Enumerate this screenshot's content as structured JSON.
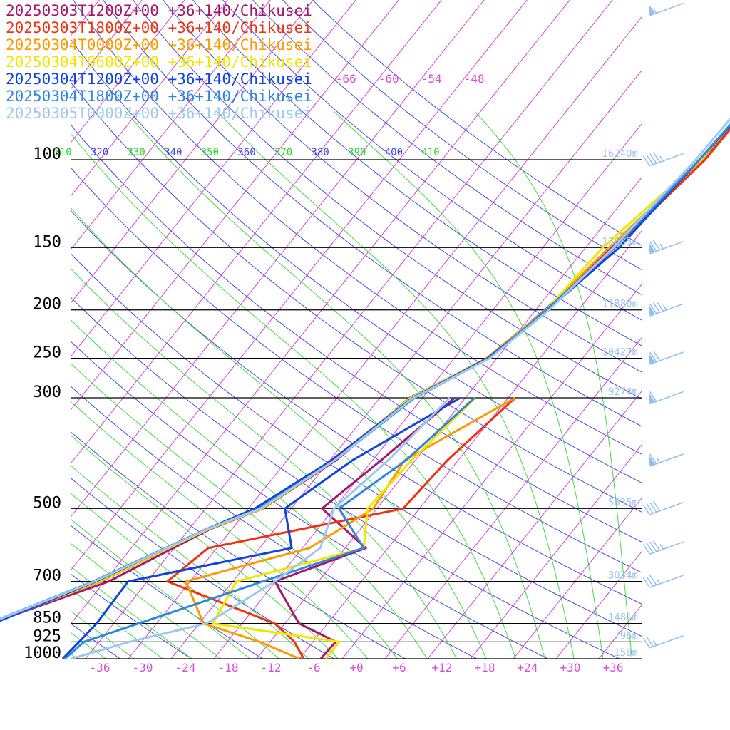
{
  "chart_data": {
    "type": "line",
    "title": "",
    "xlabel": "",
    "ylabel": "",
    "x_unit": "degC",
    "xlim": [
      -40,
      40
    ],
    "pressure_levels": [
      100,
      150,
      200,
      250,
      300,
      500,
      700,
      850,
      925,
      1000
    ],
    "pressure_labels": [
      "100",
      "150",
      "200",
      "250",
      "300",
      "500",
      "700",
      "850",
      "925",
      "1000"
    ],
    "x_tick_labels": [
      "-36",
      "-30",
      "-24",
      "-18",
      "-12",
      "-6",
      "+0",
      "+6",
      "+12",
      "+18",
      "+24",
      "+30",
      "+36"
    ],
    "x_tick_values": [
      -36,
      -30,
      -24,
      -18,
      -12,
      -6,
      0,
      6,
      12,
      18,
      24,
      30,
      36
    ],
    "isotherm_labels": [
      "-66",
      "-60",
      "-54",
      "-48"
    ],
    "theta_labels": [
      {
        "text": "310",
        "color": "#22dd22"
      },
      {
        "text": "320",
        "color": "#4444dd"
      },
      {
        "text": "330",
        "color": "#22dd22"
      },
      {
        "text": "340",
        "color": "#4444dd"
      },
      {
        "text": "350",
        "color": "#22dd22"
      },
      {
        "text": "360",
        "color": "#4444dd"
      },
      {
        "text": "370",
        "color": "#22dd22"
      },
      {
        "text": "380",
        "color": "#4444dd"
      },
      {
        "text": "390",
        "color": "#22dd22"
      },
      {
        "text": "400",
        "color": "#4444dd"
      },
      {
        "text": "410",
        "color": "#22dd22"
      }
    ],
    "height_labels": [
      "16240m",
      "13685m",
      "11880m",
      "10427m",
      "9274m",
      "5635m",
      "3034m",
      "1481m",
      "796m",
      "158m"
    ],
    "series": [
      {
        "name": "20250303T1200Z+00 +36+140/Chikusei",
        "color": "#a8166b",
        "temperature": [
          [
            28,
            -4.8
          ],
          [
            40,
            -5.3
          ],
          [
            70,
            -6.6
          ],
          [
            100,
            -7.6
          ],
          [
            150,
            -10.3
          ],
          [
            200,
            -12.7
          ],
          [
            250,
            -15.3
          ],
          [
            300,
            -21.8
          ],
          [
            400,
            -25.1
          ],
          [
            500,
            -30.0
          ],
          [
            550,
            -35.1
          ],
          [
            700,
            -43.4
          ],
          [
            850,
            -55.4
          ],
          [
            925,
            -62.9
          ],
          [
            1000,
            -64.6
          ]
        ],
        "dewpoint": [
          [
            300,
            -15.5
          ],
          [
            400,
            -18.8
          ],
          [
            500,
            -21.7
          ],
          [
            600,
            -11.1
          ],
          [
            700,
            -20.1
          ],
          [
            850,
            -12.0
          ],
          [
            925,
            -4.8
          ],
          [
            1000,
            -5.0
          ]
        ]
      },
      {
        "name": "20250303T1800Z+00 +36+140/Chikusei",
        "color": "#ee3311",
        "temperature": [
          [
            28,
            -5.7
          ],
          [
            40,
            -5.4
          ],
          [
            70,
            -6.8
          ],
          [
            100,
            -7.1
          ],
          [
            150,
            -9.9
          ],
          [
            200,
            -12.2
          ],
          [
            250,
            -15.3
          ],
          [
            300,
            -21.3
          ],
          [
            400,
            -25.8
          ],
          [
            500,
            -30.0
          ],
          [
            550,
            -35.6
          ],
          [
            700,
            -44.5
          ],
          [
            850,
            -55.5
          ],
          [
            925,
            -62.8
          ],
          [
            1000,
            -65.6
          ]
        ],
        "dewpoint": [
          [
            300,
            -7.0
          ],
          [
            400,
            -9.5
          ],
          [
            500,
            -10.3
          ],
          [
            600,
            -33.2
          ],
          [
            700,
            -35.2
          ],
          [
            850,
            -15.4
          ],
          [
            925,
            -10.6
          ],
          [
            1000,
            -7.4
          ]
        ]
      },
      {
        "name": "20250304T0000Z+00 +36+140/Chikusei",
        "color": "#ff9900",
        "temperature": [
          [
            28,
            -5.6
          ],
          [
            40,
            -6.1
          ],
          [
            70,
            -7.2
          ],
          [
            100,
            -7.6
          ],
          [
            150,
            -10.7
          ],
          [
            200,
            -12.6
          ],
          [
            250,
            -15.5
          ],
          [
            300,
            -21.6
          ],
          [
            400,
            -25.7
          ],
          [
            500,
            -30.8
          ],
          [
            550,
            -35.4
          ],
          [
            700,
            -44.5
          ],
          [
            850,
            -55.3
          ],
          [
            925,
            -62.4
          ],
          [
            1000,
            -64.3
          ]
        ],
        "dewpoint": [
          [
            300,
            -7.0
          ],
          [
            400,
            -15.5
          ],
          [
            500,
            -14.5
          ],
          [
            600,
            -19.0
          ],
          [
            700,
            -32.6
          ],
          [
            850,
            -25.4
          ],
          [
            925,
            -15.5
          ],
          [
            1000,
            -8.0
          ]
        ]
      },
      {
        "name": "20250304T0600Z+00 +36+140/Chikusei",
        "color": "#f2e600",
        "temperature": [
          [
            28,
            -5.6
          ],
          [
            40,
            -6.0
          ],
          [
            70,
            -6.9
          ],
          [
            100,
            -7.7
          ],
          [
            150,
            -11.6
          ],
          [
            200,
            -12.5
          ],
          [
            250,
            -15.3
          ],
          [
            300,
            -21.7
          ],
          [
            400,
            -25.3
          ],
          [
            500,
            -30.1
          ],
          [
            550,
            -35.3
          ],
          [
            700,
            -44.8
          ],
          [
            850,
            -55.2
          ],
          [
            925,
            -62.6
          ],
          [
            1000,
            -64.6
          ]
        ],
        "dewpoint": [
          [
            300,
            -12.6
          ],
          [
            400,
            -14.5
          ],
          [
            500,
            -15.3
          ],
          [
            600,
            -11.4
          ],
          [
            700,
            -25.5
          ],
          [
            850,
            -24.1
          ],
          [
            925,
            -4.3
          ],
          [
            1000,
            -4.3
          ]
        ]
      },
      {
        "name": "20250304T1200Z+00 +36+140/Chikusei",
        "color": "#1144dd",
        "temperature": [
          [
            28,
            -5.8
          ],
          [
            40,
            -5.8
          ],
          [
            70,
            -6.7
          ],
          [
            100,
            -7.9
          ],
          [
            150,
            -9.3
          ],
          [
            200,
            -12.3
          ],
          [
            250,
            -15.3
          ],
          [
            300,
            -21.4
          ],
          [
            400,
            -25.7
          ],
          [
            500,
            -31.1
          ],
          [
            550,
            -35.6
          ],
          [
            700,
            -45.2
          ],
          [
            850,
            -54.9
          ],
          [
            925,
            -62.4
          ],
          [
            1000,
            -64.1
          ]
        ],
        "dewpoint": [
          [
            300,
            -14.7
          ],
          [
            400,
            -22.8
          ],
          [
            500,
            -26.9
          ],
          [
            600,
            -21.5
          ],
          [
            700,
            -40.7
          ],
          [
            850,
            -40.4
          ],
          [
            925,
            -40.8
          ],
          [
            1000,
            -41.2
          ]
        ]
      },
      {
        "name": "20250304T1800Z+00 +36+140/Chikusei",
        "color": "#2d86e0",
        "temperature": [
          [
            28,
            -6.1
          ],
          [
            40,
            -6.2
          ],
          [
            70,
            -7.0
          ],
          [
            100,
            -7.9
          ],
          [
            150,
            -9.9
          ],
          [
            200,
            -12.5
          ],
          [
            250,
            -15.1
          ],
          [
            300,
            -21.1
          ],
          [
            400,
            -25.3
          ],
          [
            500,
            -30.5
          ],
          [
            550,
            -35.6
          ],
          [
            700,
            -45.6
          ],
          [
            850,
            -55.6
          ],
          [
            925,
            -62.6
          ],
          [
            1000,
            -64.6
          ]
        ],
        "dewpoint": [
          [
            300,
            -12.7
          ],
          [
            400,
            -15.3
          ],
          [
            500,
            -19.3
          ],
          [
            600,
            -11.4
          ],
          [
            700,
            -21.8
          ],
          [
            850,
            -34.5
          ],
          [
            925,
            -40.1
          ],
          [
            1000,
            -40.9
          ]
        ]
      },
      {
        "name": "20250305T0000Z+00 +36+140/Chikusei",
        "color": "#9ec8f0",
        "temperature": [
          [
            28,
            -6.3
          ],
          [
            40,
            -6.8
          ],
          [
            70,
            -7.9
          ],
          [
            100,
            -8.4
          ],
          [
            150,
            -10.1
          ],
          [
            200,
            -12.1
          ],
          [
            250,
            -15.0
          ],
          [
            300,
            -21.3
          ],
          [
            400,
            -25.3
          ],
          [
            500,
            -30.3
          ],
          [
            550,
            -35.5
          ],
          [
            700,
            -45.4
          ],
          [
            850,
            -55.5
          ],
          [
            925,
            -62.8
          ],
          [
            1000,
            -64.9
          ]
        ],
        "dewpoint": [
          [
            300,
            -16.2
          ],
          [
            400,
            -17.8
          ],
          [
            500,
            -20.0
          ],
          [
            600,
            -17.5
          ],
          [
            700,
            -20.1
          ],
          [
            850,
            -25.0
          ],
          [
            925,
            -33.7
          ],
          [
            1000,
            -40.0
          ]
        ]
      }
    ],
    "wind_barbs": [
      {
        "pressure": 50,
        "speed_kt": 55
      },
      {
        "pressure": 100,
        "speed_kt": 45
      },
      {
        "pressure": 150,
        "speed_kt": 75
      },
      {
        "pressure": 200,
        "speed_kt": 85
      },
      {
        "pressure": 250,
        "speed_kt": 70
      },
      {
        "pressure": 300,
        "speed_kt": 60
      },
      {
        "pressure": 400,
        "speed_kt": 65
      },
      {
        "pressure": 500,
        "speed_kt": 40
      },
      {
        "pressure": 600,
        "speed_kt": 45
      },
      {
        "pressure": 700,
        "speed_kt": 35
      },
      {
        "pressure": 925,
        "speed_kt": 25
      }
    ]
  }
}
